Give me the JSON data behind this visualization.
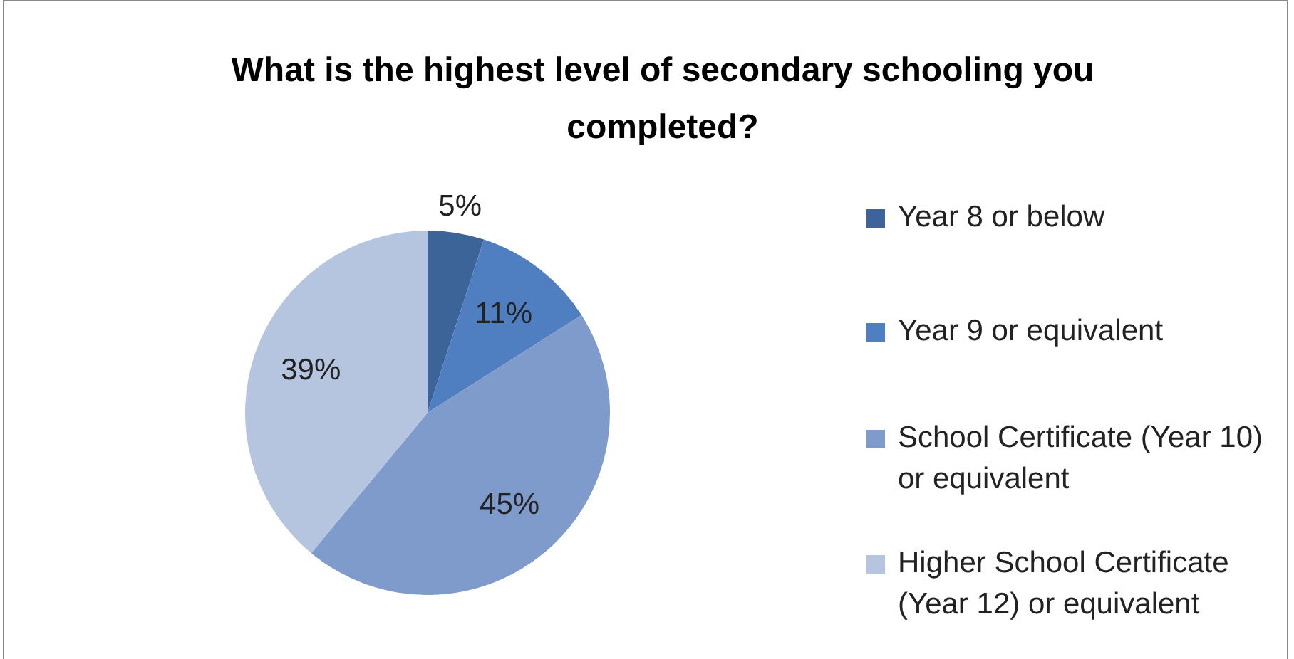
{
  "chart_data": {
    "type": "pie",
    "title": "What is the highest level of secondary schooling you completed?",
    "categories": [
      "Year 8 or below",
      "Year 9 or equivalent",
      "School Certificate (Year 10) or equivalent",
      "Higher School Certificate (Year 12) or equivalent"
    ],
    "values": [
      5,
      11,
      45,
      39
    ],
    "colors": [
      "#3d6499",
      "#4f7fc0",
      "#7e9bcb",
      "#b5c4df"
    ],
    "value_labels": [
      "5%",
      "11%",
      "45%",
      "39%"
    ],
    "legend": "right"
  }
}
